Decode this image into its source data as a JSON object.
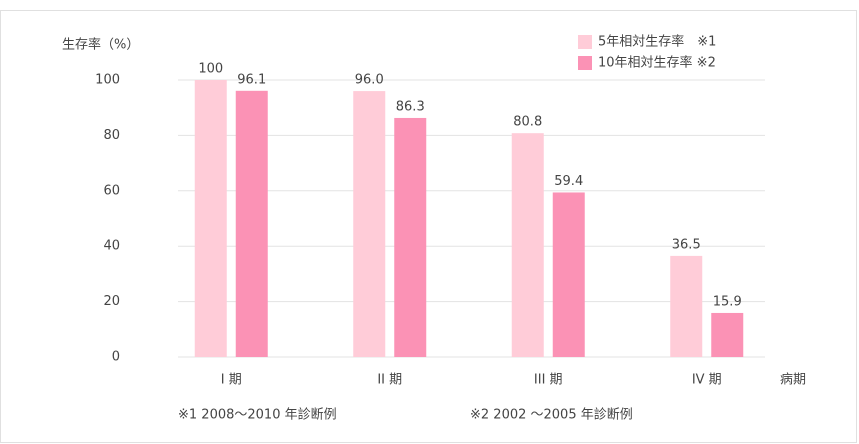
{
  "chart_data": {
    "type": "bar",
    "y_axis_label": "生存率（%）",
    "x_axis_label": "病期",
    "categories": [
      "I 期",
      "II 期",
      "III 期",
      "IV 期"
    ],
    "series": [
      {
        "name": "5年相対生存率　※1",
        "color": "#ffccd8",
        "values": [
          100,
          96.0,
          80.8,
          36.5
        ],
        "value_labels": [
          "100",
          "96.0",
          "80.8",
          "36.5"
        ]
      },
      {
        "name": "10年相対生存率 ※2",
        "color": "#fb92b5",
        "values": [
          96.1,
          86.3,
          59.4,
          15.9
        ],
        "value_labels": [
          "96.1",
          "86.3",
          "59.4",
          "15.9"
        ]
      }
    ],
    "ylim": [
      0,
      100
    ],
    "yticks": [
      0,
      20,
      40,
      60,
      80,
      100
    ],
    "grid": true,
    "footnotes": [
      "※1  2008～2010 年診断例",
      "※2  2002 ～2005 年診断例"
    ]
  }
}
